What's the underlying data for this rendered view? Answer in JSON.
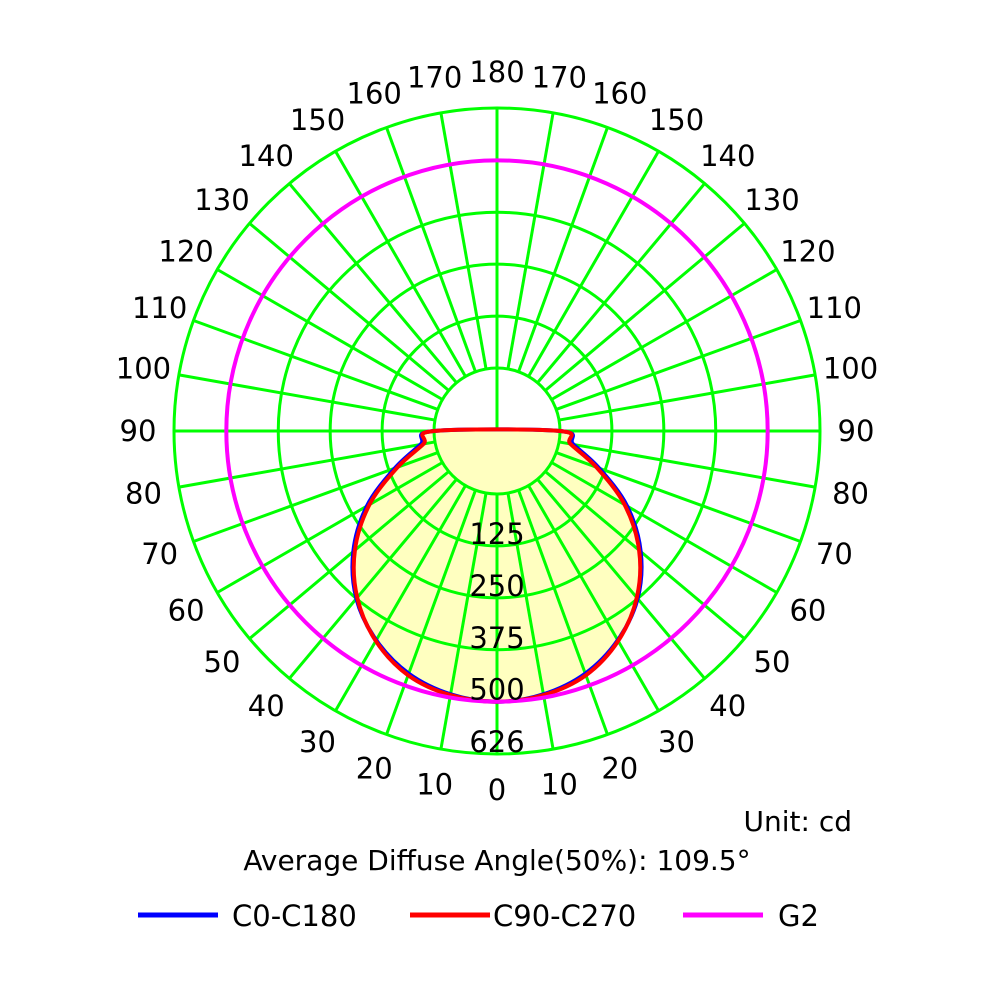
{
  "chart_data": {
    "type": "polar",
    "unit_label": "Unit: cd",
    "diffuse_label": "Average Diffuse Angle(50%): 109.5°",
    "radial_ticks": [
      "125",
      "250",
      "375",
      "500",
      "626"
    ],
    "radial_tick_values": [
      125,
      250,
      375,
      500,
      626
    ],
    "r_max": 626,
    "angle_ticks": [
      0,
      10,
      20,
      30,
      40,
      50,
      60,
      70,
      80,
      90,
      100,
      110,
      120,
      130,
      140,
      150,
      160,
      170,
      180
    ],
    "angle_tick_labels": [
      "0",
      "10",
      "20",
      "30",
      "40",
      "50",
      "60",
      "70",
      "80",
      "90",
      "100",
      "110",
      "120",
      "130",
      "140",
      "150",
      "160",
      "170",
      "180"
    ],
    "series": [
      {
        "name": "C0-C180",
        "color": "#0000ff",
        "angles": [
          0,
          10,
          20,
          30,
          40,
          50,
          60,
          70,
          80,
          90
        ],
        "values": [
          500,
          492,
          470,
          430,
          375,
          300,
          210,
          110,
          35,
          0
        ]
      },
      {
        "name": "C90-C270",
        "color": "#ff0000",
        "angles": [
          0,
          10,
          20,
          30,
          40,
          50,
          60,
          70,
          80,
          90
        ],
        "values": [
          500,
          494,
          474,
          432,
          372,
          295,
          203,
          103,
          28,
          0
        ]
      },
      {
        "name": "G2",
        "color": "#ff00ff",
        "angles": [
          0,
          30,
          60,
          90,
          120,
          150,
          180
        ],
        "values": [
          500,
          500,
          500,
          500,
          500,
          500,
          500
        ]
      }
    ],
    "colors": {
      "grid": "#00ff00",
      "fill": "#ffffc0",
      "c0": "#0000ff",
      "c90": "#ff0000",
      "g2": "#ff00ff"
    }
  }
}
